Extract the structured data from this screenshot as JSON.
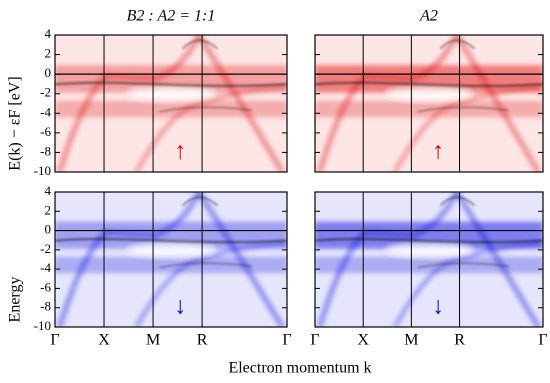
{
  "chart_data": [
    {
      "type": "heatmap",
      "title": "B2 : A2 = 1:1",
      "ylabel": "E(k) − εF [eV]",
      "color": "#e00000",
      "annotation": "↑",
      "ylim": [
        -10,
        4
      ],
      "yticks": [
        -10,
        -8,
        -6,
        -4,
        -2,
        0,
        2,
        4
      ]
    },
    {
      "type": "heatmap",
      "title": "A2",
      "color": "#e00000",
      "annotation": "↑",
      "ylim": [
        -10,
        4
      ]
    },
    {
      "type": "heatmap",
      "ylabel": "Energy",
      "xlabel": "Electron momentum k",
      "color": "#0000dd",
      "annotation": "↓",
      "ylim": [
        -10,
        4
      ],
      "yticks": [
        -10,
        -8,
        -6,
        -4,
        -2,
        0,
        2,
        4
      ],
      "xlim": [
        0,
        2.366
      ],
      "xticks": [
        {
          "value": 0,
          "label": "Γ"
        },
        {
          "value": 0.5,
          "label": "X"
        },
        {
          "value": 1,
          "label": "M"
        },
        {
          "value": 1.5,
          "label": "R"
        },
        {
          "value": 2.366,
          "label": "Γ"
        }
      ]
    },
    {
      "type": "heatmap",
      "color": "#0000dd",
      "annotation": "↓",
      "ylim": [
        -10,
        4
      ],
      "xlim": [
        0,
        2.366
      ],
      "xticks": [
        {
          "value": 0,
          "label": "Γ"
        },
        {
          "value": 0.5,
          "label": "X"
        },
        {
          "value": 1,
          "label": "M"
        },
        {
          "value": 1.5,
          "label": "R"
        },
        {
          "value": 2.366,
          "label": "Γ"
        }
      ]
    }
  ]
}
